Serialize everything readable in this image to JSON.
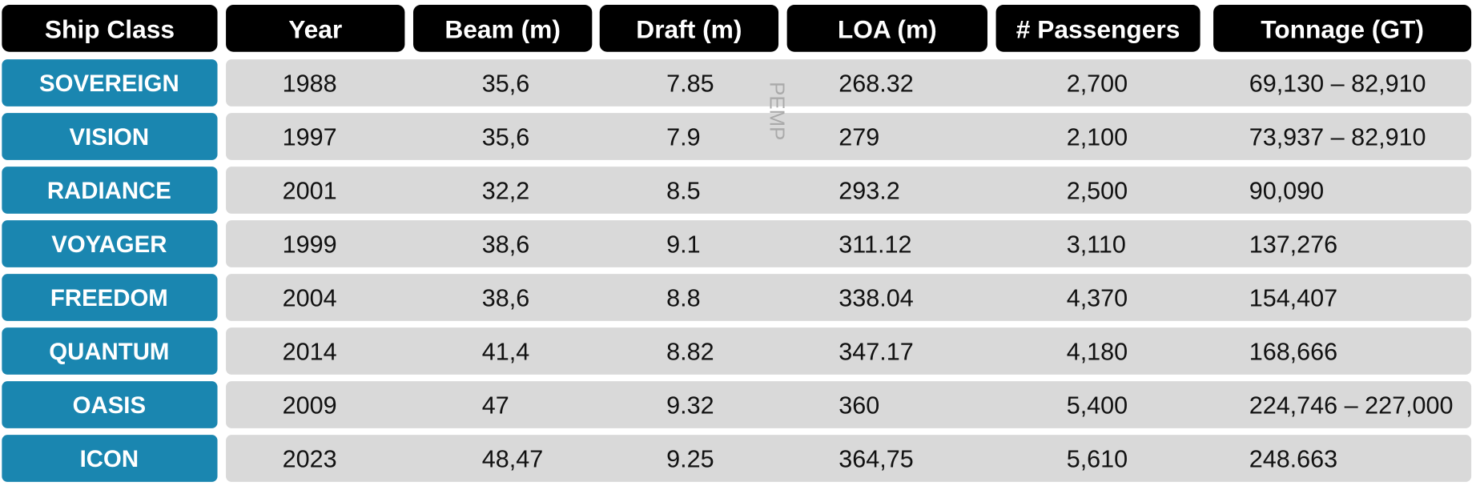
{
  "table": {
    "header": [
      "Ship Class",
      "Year",
      "Beam (m)",
      "Draft (m)",
      "LOA (m)",
      "# Passengers",
      "Tonnage (GT)"
    ],
    "rows": [
      [
        "SOVEREIGN",
        "1988",
        "35,6",
        "7.85",
        "268.32",
        "2,700",
        "69,130 – 82,910"
      ],
      [
        "VISION",
        "1997",
        "35,6",
        "7.9",
        "279",
        "2,100",
        "73,937 – 82,910"
      ],
      [
        "RADIANCE",
        "2001",
        "32,2",
        "8.5",
        "293.2",
        "2,500",
        "90,090"
      ],
      [
        "VOYAGER",
        "1999",
        "38,6",
        "9.1",
        "311.12",
        "3,110",
        "137,276"
      ],
      [
        "FREEDOM",
        "2004",
        "38,6",
        "8.8",
        "338.04",
        "4,370",
        "154,407"
      ],
      [
        "QUANTUM",
        "2014",
        "41,4",
        "8.82",
        "347.17",
        "4,180",
        "168,666"
      ],
      [
        "OASIS",
        "2009",
        "47",
        "9.32",
        "360",
        "5,400",
        "224,746 – 227,000"
      ],
      [
        "ICON",
        "2023",
        "48,47",
        "9.25",
        "364,75",
        "5,610",
        "248.663"
      ]
    ]
  },
  "watermark": "PEMP"
}
